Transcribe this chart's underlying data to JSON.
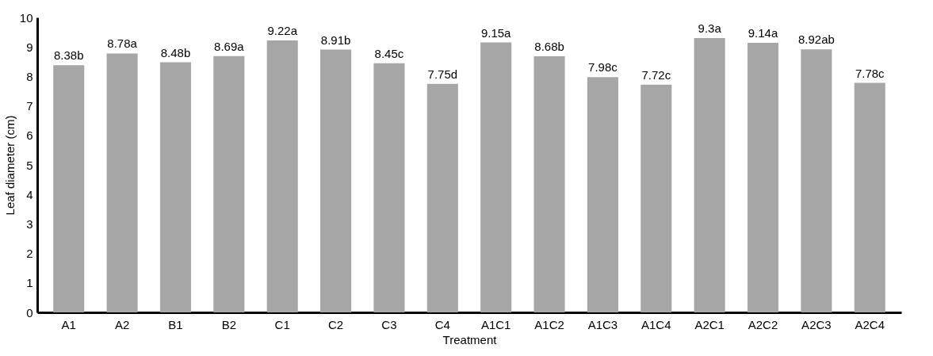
{
  "chart_data": {
    "type": "bar",
    "xlabel": "Treatment",
    "ylabel": "Leaf diameter (cm)",
    "categories": [
      "A1",
      "A2",
      "B1",
      "B2",
      "C1",
      "C2",
      "C3",
      "C4",
      "A1C1",
      "A1C2",
      "A1C3",
      "A1C4",
      "A2C1",
      "A2C2",
      "A2C3",
      "A2C4"
    ],
    "values": [
      8.38,
      8.78,
      8.48,
      8.69,
      9.22,
      8.91,
      8.45,
      7.75,
      9.15,
      8.68,
      7.98,
      7.72,
      9.3,
      9.14,
      8.92,
      7.78
    ],
    "value_labels": [
      "8.38b",
      "8.78a",
      "8.48b",
      "8.69a",
      "9.22a",
      "8.91b",
      "8.45c",
      "7.75d",
      "9.15a",
      "8.68b",
      "7.98c",
      "7.72c",
      "9.3a",
      "9.14a",
      "8.92ab",
      "7.78c"
    ],
    "color": "#a6a6a6",
    "ylim": [
      0,
      10
    ],
    "yticks": [
      0,
      1,
      2,
      3,
      4,
      5,
      6,
      7,
      8,
      9,
      10
    ],
    "grid": false
  }
}
